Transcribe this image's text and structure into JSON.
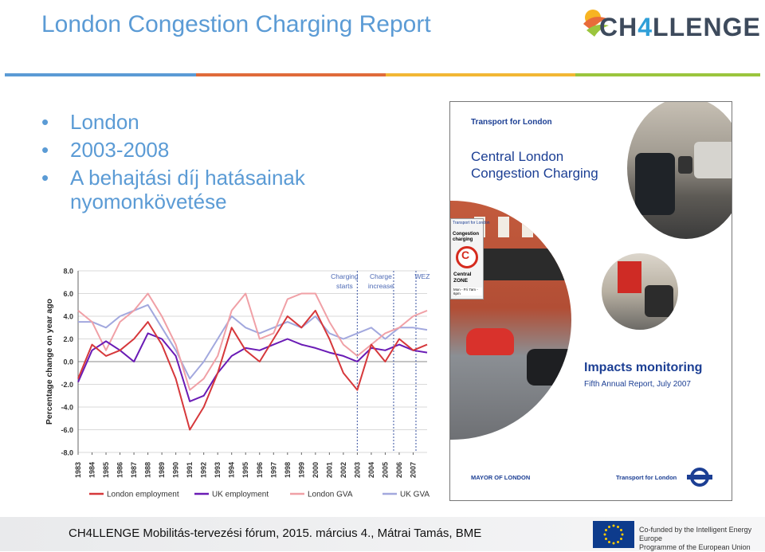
{
  "header": {
    "title": "London Congestion Charging Report",
    "logo_text_a": "CH",
    "logo_text_b": "4",
    "logo_text_c": "LLENGE"
  },
  "bullets": [
    {
      "text": "London"
    },
    {
      "text": "2003-2008"
    },
    {
      "text": "A behajtási díj hatásainak nyomonkövetése"
    }
  ],
  "chart_data": {
    "type": "line",
    "ylabel": "Percentage change on year ago",
    "ylim": [
      -8.0,
      8.0
    ],
    "yticks": [
      "8.0",
      "6.0",
      "4.0",
      "2.0",
      "0.0",
      "-2.0",
      "-4.0",
      "-6.0",
      "-8.0"
    ],
    "xticks": [
      "1983",
      "1984",
      "1985",
      "1986",
      "1987",
      "1988",
      "1989",
      "1990",
      "1991",
      "1992",
      "1993",
      "1994",
      "1995",
      "1996",
      "1997",
      "1998",
      "1999",
      "2000",
      "2001",
      "2002",
      "2003",
      "2004",
      "2005",
      "2006",
      "2007"
    ],
    "annotations": [
      {
        "text_1": "Charging",
        "text_2": "starts",
        "x": 2003.0
      },
      {
        "text_1": "Charge",
        "text_2": "increase",
        "x": 2005.6
      },
      {
        "text_1": "WEZ",
        "text_2": "",
        "x": 2007.2
      }
    ],
    "x": [
      1983,
      1984,
      1985,
      1986,
      1987,
      1988,
      1989,
      1990,
      1991,
      1992,
      1993,
      1994,
      1995,
      1996,
      1997,
      1998,
      1999,
      2000,
      2001,
      2002,
      2003,
      2004,
      2005,
      2006,
      2007,
      2008
    ],
    "series": [
      {
        "name": "London employment",
        "color": "#d6383b",
        "values": [
          -1.5,
          1.5,
          0.5,
          1.0,
          2.0,
          3.5,
          1.5,
          -1.5,
          -6.0,
          -4.0,
          -1.0,
          3.0,
          1.0,
          0.0,
          2.0,
          4.0,
          3.0,
          4.5,
          2.0,
          -1.0,
          -2.5,
          1.5,
          0.0,
          2.0,
          1.0,
          1.5
        ]
      },
      {
        "name": "UK employment",
        "color": "#6a1bb5",
        "values": [
          -1.8,
          1.0,
          1.8,
          1.0,
          0.0,
          2.5,
          2.0,
          0.5,
          -3.5,
          -3.0,
          -1.0,
          0.5,
          1.2,
          1.0,
          1.5,
          2.0,
          1.5,
          1.2,
          0.8,
          0.5,
          0.0,
          1.2,
          1.0,
          1.5,
          1.0,
          0.8
        ]
      },
      {
        "name": "London GVA",
        "color": "#f0a0a6",
        "values": [
          4.5,
          3.5,
          1.0,
          3.5,
          4.5,
          6.0,
          4.0,
          1.5,
          -2.5,
          -1.5,
          0.5,
          4.5,
          6.0,
          2.0,
          2.5,
          5.5,
          6.0,
          6.0,
          3.5,
          1.5,
          0.5,
          1.5,
          2.5,
          3.0,
          4.0,
          4.5
        ]
      },
      {
        "name": "UK GVA",
        "color": "#a2a8de",
        "values": [
          3.5,
          3.5,
          3.0,
          4.0,
          4.5,
          5.0,
          3.0,
          1.0,
          -1.5,
          0.0,
          2.0,
          4.0,
          3.0,
          2.5,
          3.0,
          3.5,
          3.0,
          4.0,
          2.5,
          2.0,
          2.5,
          3.0,
          2.0,
          3.0,
          3.0,
          2.8
        ]
      }
    ]
  },
  "cover": {
    "publisher": "Transport for London",
    "title_1": "Central London",
    "title_2": "Congestion Charging",
    "sign_1": "Transport for London",
    "sign_2": "Congestion charging",
    "sign_3": "C",
    "sign_4": "Central ZONE",
    "sign_5": "Mon - Fri 7am - 6pm",
    "heading": "Impacts monitoring",
    "subheading": "Fifth Annual Report, July 2007",
    "footer_left": "MAYOR OF LONDON",
    "footer_right": "Transport for London"
  },
  "footer": {
    "text": "CH4LLENGE Mobilitás-tervezési fórum, 2015. március 4., Mátrai Tamás, BME",
    "eu_text_1": "Co-funded by the Intelligent Energy Europe",
    "eu_text_2": "Programme of the European Union"
  }
}
